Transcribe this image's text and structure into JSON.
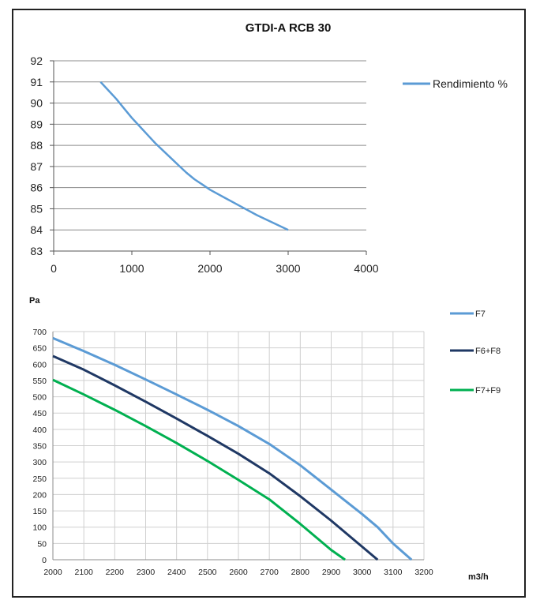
{
  "chart_data": [
    {
      "type": "line",
      "title": "GTDI-A RCB 30",
      "xlabel": "",
      "ylabel": "",
      "xlim": [
        0,
        4000
      ],
      "ylim": [
        83,
        92
      ],
      "xticks": [
        "0",
        "1000",
        "2000",
        "3000",
        "4000"
      ],
      "yticks": [
        "83",
        "84",
        "85",
        "86",
        "87",
        "88",
        "89",
        "90",
        "91",
        "92"
      ],
      "grid": "horizontal",
      "legend_position": "right",
      "series": [
        {
          "name": "Rendimiento %",
          "color": "#5B9BD5",
          "x": [
            600,
            700,
            800,
            900,
            1000,
            1100,
            1200,
            1300,
            1400,
            1500,
            1600,
            1700,
            1800,
            1900,
            2000,
            2200,
            2400,
            2600,
            2800,
            3000
          ],
          "y": [
            91.0,
            90.6,
            90.2,
            89.75,
            89.3,
            88.9,
            88.5,
            88.1,
            87.75,
            87.4,
            87.05,
            86.7,
            86.4,
            86.15,
            85.9,
            85.5,
            85.1,
            84.7,
            84.35,
            84.0
          ]
        }
      ]
    },
    {
      "type": "line",
      "title": "",
      "ylabel": "Pa",
      "xlabel": "m3/h",
      "xlim": [
        2000,
        3200
      ],
      "ylim": [
        0,
        700
      ],
      "xticks": [
        "2000",
        "2100",
        "2200",
        "2300",
        "2400",
        "2500",
        "2600",
        "2700",
        "2800",
        "2900",
        "3000",
        "3100",
        "3200"
      ],
      "yticks": [
        "0",
        "50",
        "100",
        "150",
        "200",
        "250",
        "300",
        "350",
        "400",
        "450",
        "500",
        "550",
        "600",
        "650",
        "700"
      ],
      "grid": "both",
      "legend_position": "right",
      "series": [
        {
          "name": "F7",
          "color": "#5B9BD5",
          "x": [
            2000,
            2100,
            2200,
            2300,
            2400,
            2500,
            2600,
            2700,
            2800,
            2900,
            3000,
            3050,
            3100,
            3160
          ],
          "y": [
            680,
            640,
            598,
            553,
            507,
            460,
            410,
            355,
            290,
            215,
            140,
            100,
            50,
            0
          ]
        },
        {
          "name": "F6+F8",
          "color": "#1F3864",
          "x": [
            2000,
            2100,
            2200,
            2300,
            2400,
            2500,
            2600,
            2700,
            2800,
            2900,
            3000,
            3050
          ],
          "y": [
            625,
            583,
            535,
            485,
            433,
            380,
            325,
            265,
            195,
            120,
            40,
            0
          ]
        },
        {
          "name": "F7+F9",
          "color": "#00B050",
          "x": [
            2000,
            2100,
            2200,
            2300,
            2400,
            2500,
            2600,
            2700,
            2800,
            2850,
            2900,
            2945
          ],
          "y": [
            552,
            507,
            460,
            410,
            358,
            303,
            245,
            185,
            110,
            70,
            30,
            0
          ]
        }
      ]
    }
  ]
}
